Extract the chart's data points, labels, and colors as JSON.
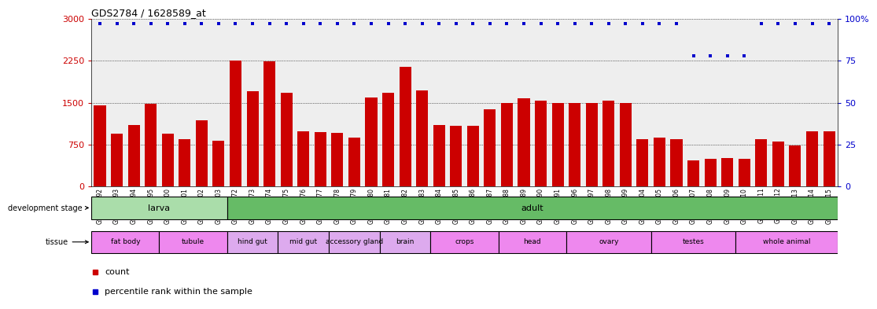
{
  "title": "GDS2784 / 1628589_at",
  "samples": [
    "GSM188092",
    "GSM188093",
    "GSM188094",
    "GSM188095",
    "GSM188100",
    "GSM188101",
    "GSM188102",
    "GSM188103",
    "GSM188072",
    "GSM188073",
    "GSM188074",
    "GSM188075",
    "GSM188076",
    "GSM188077",
    "GSM188078",
    "GSM188079",
    "GSM188080",
    "GSM188081",
    "GSM188082",
    "GSM188083",
    "GSM188084",
    "GSM188085",
    "GSM188086",
    "GSM188087",
    "GSM188088",
    "GSM188089",
    "GSM188090",
    "GSM188091",
    "GSM188096",
    "GSM188097",
    "GSM188098",
    "GSM188099",
    "GSM188104",
    "GSM188105",
    "GSM188106",
    "GSM188107",
    "GSM188108",
    "GSM188109",
    "GSM188110",
    "GSM188111",
    "GSM188112",
    "GSM188113",
    "GSM188114",
    "GSM188115"
  ],
  "counts": [
    1450,
    950,
    1100,
    1480,
    950,
    850,
    1180,
    820,
    2250,
    1700,
    2240,
    1680,
    980,
    970,
    960,
    870,
    1590,
    1680,
    2140,
    1720,
    1100,
    1090,
    1090,
    1380,
    1490,
    1580,
    1530,
    1490,
    1490,
    1500,
    1530,
    1490,
    840,
    870,
    840,
    460,
    490,
    510,
    490,
    840,
    800,
    740,
    990,
    980
  ],
  "percentiles": [
    97,
    97,
    97,
    97,
    97,
    97,
    97,
    97,
    97,
    97,
    97,
    97,
    97,
    97,
    97,
    97,
    97,
    97,
    97,
    97,
    97,
    97,
    97,
    97,
    97,
    97,
    97,
    97,
    97,
    97,
    97,
    97,
    97,
    97,
    97,
    78,
    78,
    78,
    78,
    97,
    97,
    97,
    97,
    97
  ],
  "bar_color": "#cc0000",
  "dot_color": "#0000cc",
  "bg_color": "#eeeeee",
  "ylim_left": [
    0,
    3000
  ],
  "ylim_right": [
    0,
    100
  ],
  "yticks_left": [
    0,
    750,
    1500,
    2250,
    3000
  ],
  "yticks_right": [
    0,
    25,
    50,
    75,
    100
  ],
  "dev_larva": {
    "start": 0,
    "end": 8,
    "label": "larva",
    "color": "#aaddaa"
  },
  "dev_adult": {
    "start": 8,
    "end": 44,
    "label": "adult",
    "color": "#66bb66"
  },
  "tissues": [
    {
      "label": "fat body",
      "start": 0,
      "end": 4,
      "color": "#ee88ee"
    },
    {
      "label": "tubule",
      "start": 4,
      "end": 8,
      "color": "#ee88ee"
    },
    {
      "label": "hind gut",
      "start": 8,
      "end": 11,
      "color": "#ddaaee"
    },
    {
      "label": "mid gut",
      "start": 11,
      "end": 14,
      "color": "#ddaaee"
    },
    {
      "label": "accessory gland",
      "start": 14,
      "end": 17,
      "color": "#ddaaee"
    },
    {
      "label": "brain",
      "start": 17,
      "end": 20,
      "color": "#ddaaee"
    },
    {
      "label": "crops",
      "start": 20,
      "end": 24,
      "color": "#ee88ee"
    },
    {
      "label": "head",
      "start": 24,
      "end": 28,
      "color": "#ee88ee"
    },
    {
      "label": "ovary",
      "start": 28,
      "end": 33,
      "color": "#ee88ee"
    },
    {
      "label": "testes",
      "start": 33,
      "end": 38,
      "color": "#ee88ee"
    },
    {
      "label": "whole animal",
      "start": 38,
      "end": 44,
      "color": "#ee88ee"
    }
  ]
}
